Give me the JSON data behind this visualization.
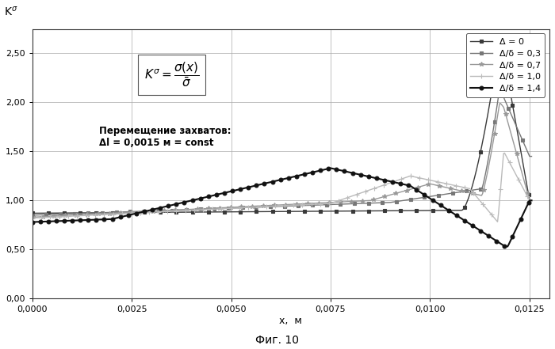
{
  "title": "",
  "xlabel": "x,  м",
  "ylabel": "Kσ",
  "figcaption": "Фиг. 10",
  "xlim": [
    0.0,
    0.013
  ],
  "ylim": [
    0.0,
    2.75
  ],
  "yticks": [
    0.0,
    0.5,
    1.0,
    1.5,
    2.0,
    2.5
  ],
  "ytick_labels": [
    "0,00",
    "0,50",
    "1,00",
    "1,50",
    "2,00",
    "2,50"
  ],
  "xticks": [
    0.0,
    0.0025,
    0.005,
    0.0075,
    0.01,
    0.0125
  ],
  "xtick_labels": [
    "0,0000",
    "0,0025",
    "0,0050",
    "0,0075",
    "0,0100",
    "0,0125"
  ],
  "legend_labels": [
    "Δ = 0",
    "Δ/δ = 0,3",
    "Δ/δ = 0,7",
    "Δ/δ = 1,0",
    "Δ/δ = 1,4"
  ],
  "annotation_text": "Перемещение захватов:\nΔl = 0,0015 м = const",
  "background_color": "#ffffff",
  "grid_color": "#aaaaaa"
}
